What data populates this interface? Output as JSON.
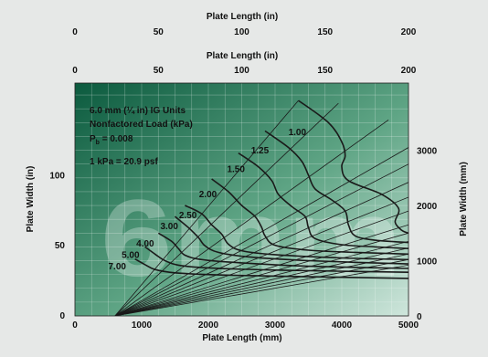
{
  "chart_data": {
    "type": "line",
    "top_axis_outer": {
      "label": "Plate Length (in)",
      "ticks": [
        "0",
        "50",
        "100",
        "150",
        "200"
      ],
      "range": [
        0,
        200
      ]
    },
    "top_axis_inner": {
      "label": "Plate Length (in)",
      "ticks": [
        "0",
        "50",
        "100",
        "150",
        "200"
      ],
      "range": [
        0,
        200
      ]
    },
    "x_axis": {
      "label": "Plate Length (mm)",
      "ticks": [
        "0",
        "1000",
        "2000",
        "3000",
        "4000",
        "5000"
      ],
      "range": [
        0,
        5000
      ]
    },
    "y_axis_left": {
      "label": "Plate Width (in)",
      "ticks": [
        "0",
        "50",
        "100"
      ],
      "range": [
        0,
        166
      ]
    },
    "y_axis_right": {
      "label": "Plate Width (mm)",
      "ticks": [
        "0",
        "1000",
        "2000",
        "3000"
      ],
      "range": [
        0,
        4216
      ]
    },
    "notes": [
      "6.0 mm (¼ in) IG Units",
      "Nonfactored Load (kPa)",
      "P",
      "b",
      " = 0.008",
      "1 kPa = 20.9 psf"
    ],
    "watermark": "6mm",
    "grid": true,
    "background_colors": [
      "#0b5a3e",
      "#cfe6dc"
    ],
    "line_color": "#1a1a1a",
    "diagonals_from_mm": [
      600,
      0
    ],
    "diagonal_ends_mm": [
      [
        3350,
        3900
      ],
      [
        3950,
        3850
      ],
      [
        4700,
        3550
      ],
      [
        5000,
        3050
      ],
      [
        5000,
        2750
      ],
      [
        5000,
        2420
      ],
      [
        5000,
        2150
      ],
      [
        5000,
        1900
      ],
      [
        5000,
        1650
      ],
      [
        5000,
        1500
      ],
      [
        5000,
        1350
      ],
      [
        5000,
        1230
      ],
      [
        5000,
        1120
      ],
      [
        5000,
        1020
      ],
      [
        5000,
        920
      ]
    ],
    "series": [
      {
        "name": "1.00",
        "points_mm": [
          [
            3350,
            3900
          ],
          [
            3800,
            3500
          ],
          [
            4000,
            3150
          ],
          [
            4050,
            2900
          ],
          [
            4000,
            2700
          ],
          [
            4100,
            2450
          ],
          [
            4600,
            2200
          ],
          [
            4850,
            1950
          ],
          [
            4800,
            1700
          ],
          [
            4900,
            1550
          ],
          [
            5000,
            1500
          ]
        ]
      },
      {
        "name": "1.25",
        "points_mm": [
          [
            2850,
            3350
          ],
          [
            3200,
            3050
          ],
          [
            3400,
            2800
          ],
          [
            3500,
            2550
          ],
          [
            3600,
            2300
          ],
          [
            3850,
            2100
          ],
          [
            4050,
            1900
          ],
          [
            4100,
            1650
          ],
          [
            4200,
            1450
          ],
          [
            4500,
            1370
          ],
          [
            5000,
            1330
          ]
        ]
      },
      {
        "name": "1.50",
        "points_mm": [
          [
            2450,
            2950
          ],
          [
            2750,
            2700
          ],
          [
            2950,
            2450
          ],
          [
            3050,
            2200
          ],
          [
            3250,
            1980
          ],
          [
            3450,
            1800
          ],
          [
            3500,
            1600
          ],
          [
            3600,
            1400
          ],
          [
            4000,
            1290
          ],
          [
            4500,
            1250
          ],
          [
            5000,
            1220
          ]
        ]
      },
      {
        "name": "2.00",
        "points_mm": [
          [
            2050,
            2480
          ],
          [
            2300,
            2250
          ],
          [
            2500,
            2000
          ],
          [
            2700,
            1800
          ],
          [
            2800,
            1600
          ],
          [
            2850,
            1450
          ],
          [
            3000,
            1280
          ],
          [
            3500,
            1190
          ],
          [
            4200,
            1150
          ],
          [
            5000,
            1120
          ]
        ]
      },
      {
        "name": "2.50",
        "points_mm": [
          [
            1650,
            2000
          ],
          [
            1900,
            1850
          ],
          [
            2050,
            1650
          ],
          [
            2200,
            1480
          ],
          [
            2300,
            1300
          ],
          [
            2500,
            1180
          ],
          [
            3000,
            1110
          ],
          [
            4000,
            1050
          ],
          [
            5000,
            1020
          ]
        ]
      },
      {
        "name": "3.00",
        "points_mm": [
          [
            1500,
            1800
          ],
          [
            1700,
            1600
          ],
          [
            1850,
            1420
          ],
          [
            1950,
            1270
          ],
          [
            2150,
            1150
          ],
          [
            2600,
            1070
          ],
          [
            3500,
            1000
          ],
          [
            5000,
            940
          ]
        ]
      },
      {
        "name": "4.00",
        "points_mm": [
          [
            1250,
            1500
          ],
          [
            1450,
            1350
          ],
          [
            1550,
            1220
          ],
          [
            1650,
            1100
          ],
          [
            1900,
            1020
          ],
          [
            2500,
            960
          ],
          [
            3500,
            900
          ],
          [
            5000,
            860
          ]
        ]
      },
      {
        "name": "5.00",
        "points_mm": [
          [
            1050,
            1250
          ],
          [
            1200,
            1120
          ],
          [
            1350,
            1000
          ],
          [
            1550,
            920
          ],
          [
            2000,
            870
          ],
          [
            3000,
            830
          ],
          [
            5000,
            790
          ]
        ]
      },
      {
        "name": "7.00",
        "points_mm": [
          [
            900,
            1030
          ],
          [
            1050,
            930
          ],
          [
            1200,
            840
          ],
          [
            1500,
            780
          ],
          [
            2200,
            740
          ],
          [
            3500,
            710
          ],
          [
            5000,
            680
          ]
        ]
      }
    ],
    "label_positions_mm": {
      "1.00": [
        3200,
        3270
      ],
      "1.25": [
        2640,
        2940
      ],
      "1.50": [
        2280,
        2600
      ],
      "2.00": [
        1860,
        2150
      ],
      "2.50": [
        1560,
        1770
      ],
      "3.00": [
        1280,
        1570
      ],
      "4.00": [
        920,
        1260
      ],
      "5.00": [
        700,
        1050
      ],
      "7.00": [
        500,
        840
      ]
    }
  }
}
